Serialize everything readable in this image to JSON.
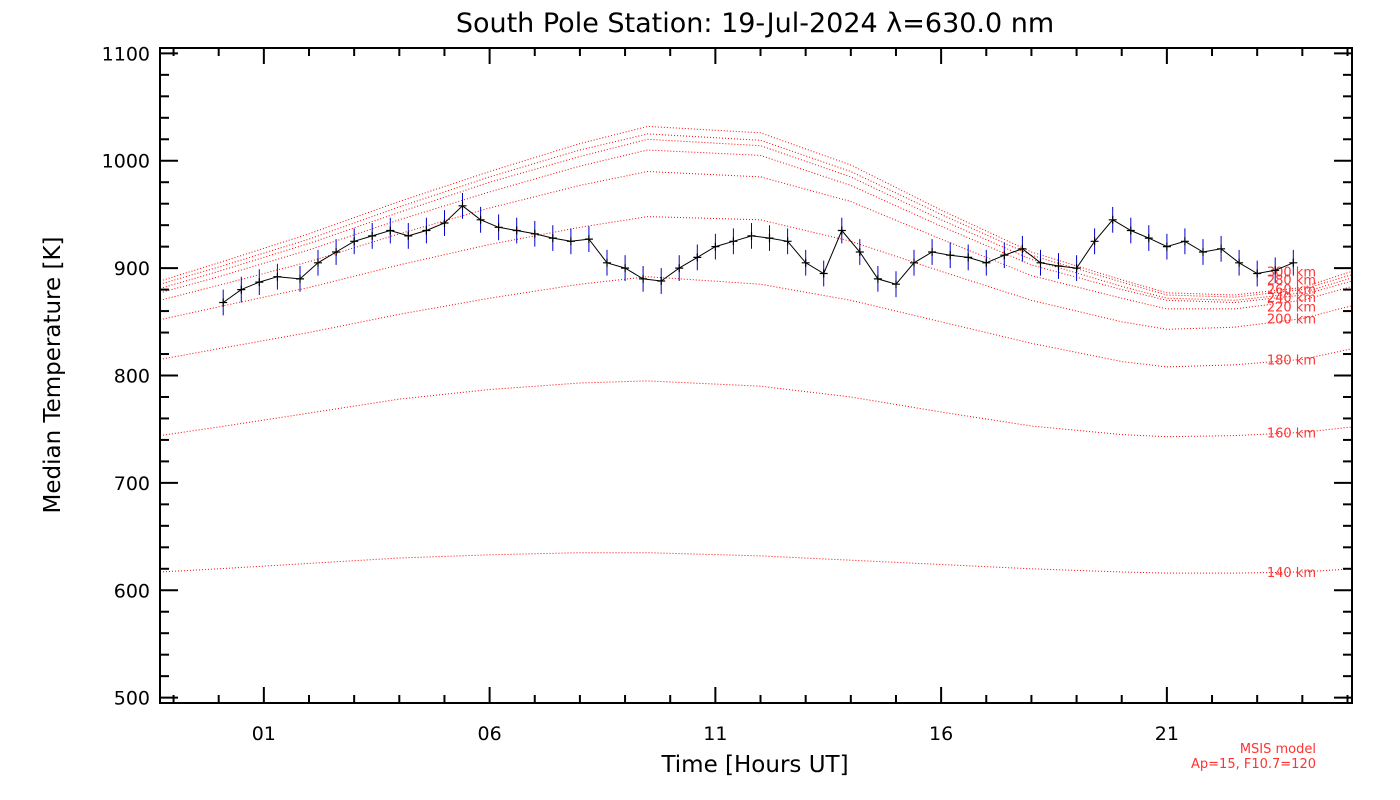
{
  "chart_data": {
    "type": "line",
    "title": "South Pole Station: 19-Jul-2024 λ=630.0 nm",
    "xlabel": "Time [Hours UT]",
    "ylabel": "Median Temperature [K]",
    "xlim": [
      -1.3,
      25.1
    ],
    "ylim": [
      495,
      1105
    ],
    "x_ticks": [
      1,
      6,
      11,
      16,
      21
    ],
    "x_tick_labels": [
      "01",
      "06",
      "11",
      "16",
      "21"
    ],
    "y_ticks": [
      500,
      600,
      700,
      800,
      900,
      1000,
      1100
    ],
    "y_tick_labels": [
      "500",
      "600",
      "700",
      "800",
      "900",
      "1000",
      "1100"
    ],
    "grid": false,
    "colors": {
      "observation": "#000000",
      "error_bar": "#0000cc",
      "model": "#ff0000",
      "note": "#ff3333"
    },
    "note_lines": [
      "MSIS model",
      "Ap=15, F10.7=120"
    ],
    "observed": {
      "name": "Median temperature",
      "x": [
        0.1,
        0.5,
        0.9,
        1.3,
        1.8,
        2.2,
        2.6,
        3.0,
        3.4,
        3.8,
        4.2,
        4.6,
        5.0,
        5.4,
        5.8,
        6.2,
        6.6,
        7.0,
        7.4,
        7.8,
        8.2,
        8.6,
        9.0,
        9.4,
        9.8,
        10.2,
        10.6,
        11.0,
        11.4,
        11.8,
        12.2,
        12.6,
        13.0,
        13.4,
        13.8,
        14.2,
        14.6,
        15.0,
        15.4,
        15.8,
        16.2,
        16.6,
        17.0,
        17.4,
        17.8,
        18.2,
        18.6,
        19.0,
        19.4,
        19.8,
        20.2,
        20.6,
        21.0,
        21.4,
        21.8,
        22.2,
        22.6,
        23.0,
        23.4,
        23.8
      ],
      "y": [
        868,
        880,
        887,
        892,
        890,
        905,
        915,
        925,
        930,
        935,
        930,
        935,
        942,
        958,
        945,
        938,
        935,
        932,
        928,
        925,
        927,
        905,
        900,
        890,
        888,
        900,
        910,
        920,
        925,
        930,
        928,
        925,
        905,
        895,
        935,
        915,
        890,
        885,
        905,
        915,
        912,
        910,
        905,
        912,
        918,
        905,
        902,
        900,
        925,
        945,
        935,
        928,
        920,
        925,
        915,
        918,
        905,
        895,
        898,
        905
      ],
      "error": [
        12,
        12,
        12,
        12,
        12,
        12,
        12,
        12,
        12,
        12,
        12,
        12,
        12,
        12,
        12,
        12,
        12,
        12,
        12,
        12,
        12,
        12,
        12,
        12,
        12,
        12,
        12,
        12,
        12,
        12,
        12,
        12,
        12,
        12,
        12,
        12,
        12,
        12,
        12,
        12,
        12,
        12,
        12,
        12,
        12,
        12,
        12,
        12,
        12,
        12,
        12,
        12,
        12,
        12,
        12,
        12,
        12,
        12,
        12,
        12
      ]
    },
    "x_model": [
      -1.3,
      0,
      2,
      4,
      6,
      8,
      9.5,
      12,
      14,
      16,
      18,
      20,
      21,
      22.5,
      24,
      25.1
    ],
    "series": [
      {
        "name": "140 km",
        "values": [
          617,
          620,
          625,
          630,
          633,
          635,
          635,
          632,
          628,
          624,
          620,
          617,
          616,
          616,
          617,
          620
        ]
      },
      {
        "name": "160 km",
        "values": [
          744,
          752,
          765,
          778,
          787,
          793,
          795,
          790,
          780,
          766,
          753,
          745,
          743,
          744,
          747,
          752
        ]
      },
      {
        "name": "180 km",
        "values": [
          815,
          825,
          840,
          857,
          872,
          885,
          892,
          885,
          870,
          850,
          830,
          813,
          808,
          810,
          815,
          825
        ]
      },
      {
        "name": "200 km",
        "values": [
          852,
          864,
          882,
          903,
          922,
          938,
          948,
          945,
          925,
          897,
          870,
          850,
          843,
          845,
          853,
          865
        ]
      },
      {
        "name": "220 km",
        "values": [
          870,
          884,
          906,
          932,
          956,
          977,
          990,
          985,
          962,
          927,
          893,
          872,
          862,
          862,
          870,
          883
        ]
      },
      {
        "name": "240 km",
        "values": [
          877,
          892,
          917,
          945,
          971,
          995,
          1010,
          1005,
          977,
          939,
          903,
          880,
          870,
          868,
          875,
          888
        ]
      },
      {
        "name": "260 km",
        "values": [
          881,
          897,
          923,
          952,
          980,
          1004,
          1020,
          1014,
          985,
          945,
          908,
          883,
          872,
          870,
          877,
          891
        ]
      },
      {
        "name": "280 km",
        "values": [
          885,
          901,
          927,
          957,
          985,
          1010,
          1025,
          1019,
          990,
          950,
          912,
          887,
          875,
          873,
          880,
          894
        ]
      },
      {
        "name": "300 km",
        "values": [
          888,
          905,
          932,
          962,
          990,
          1016,
          1032,
          1026,
          996,
          954,
          915,
          889,
          877,
          875,
          882,
          897
        ]
      }
    ]
  }
}
